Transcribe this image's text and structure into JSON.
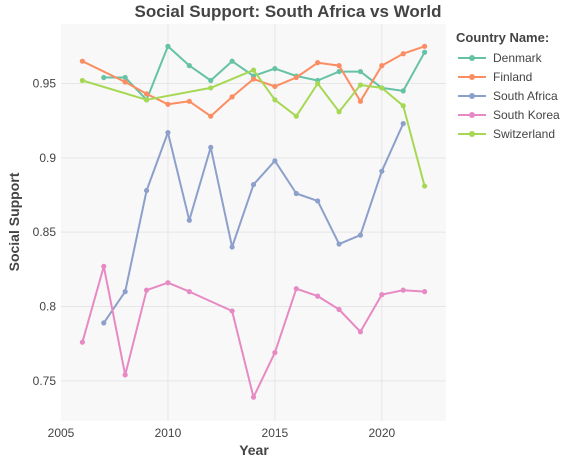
{
  "chart_data": {
    "type": "line",
    "title": "Social Support: South Africa vs World",
    "xlabel": "Year",
    "ylabel": "Social Support",
    "xlim": [
      2005,
      2023
    ],
    "ylim": [
      0.723,
      0.99
    ],
    "xticks": [
      2005,
      2010,
      2015,
      2020
    ],
    "yticks": [
      0.75,
      0.8,
      0.85,
      0.9,
      0.95
    ],
    "ytick_labels": [
      "0.75",
      "0.8",
      "0.85",
      "0.9",
      "0.95"
    ],
    "grid": true,
    "legend": {
      "title": "Country Name:",
      "position": "top-right"
    },
    "series": [
      {
        "name": "Denmark",
        "color": "#66c2a5",
        "x": [
          2007,
          2008,
          2009,
          2010,
          2011,
          2012,
          2013,
          2014,
          2015,
          2016,
          2017,
          2018,
          2019,
          2020,
          2021,
          2022
        ],
        "y": [
          0.954,
          0.954,
          0.939,
          0.975,
          0.962,
          0.952,
          0.965,
          0.955,
          0.96,
          0.955,
          0.952,
          0.958,
          0.958,
          0.947,
          0.945,
          0.971
        ]
      },
      {
        "name": "Finland",
        "color": "#fc8d62",
        "x": [
          2006,
          2008,
          2009,
          2010,
          2011,
          2012,
          2013,
          2014,
          2015,
          2016,
          2017,
          2018,
          2019,
          2020,
          2021,
          2022
        ],
        "y": [
          0.965,
          0.951,
          0.943,
          0.936,
          0.938,
          0.928,
          0.941,
          0.953,
          0.948,
          0.954,
          0.964,
          0.962,
          0.938,
          0.962,
          0.97,
          0.975
        ]
      },
      {
        "name": "South Africa",
        "color": "#8da0cb",
        "x": [
          2007,
          2008,
          2009,
          2010,
          2011,
          2012,
          2013,
          2014,
          2015,
          2016,
          2017,
          2018,
          2019,
          2020,
          2021
        ],
        "y": [
          0.789,
          0.81,
          0.878,
          0.917,
          0.858,
          0.907,
          0.84,
          0.882,
          0.898,
          0.876,
          0.871,
          0.842,
          0.848,
          0.891,
          0.923
        ]
      },
      {
        "name": "South Korea",
        "color": "#e78ac3",
        "x": [
          2006,
          2007,
          2008,
          2009,
          2010,
          2011,
          2013,
          2014,
          2015,
          2016,
          2017,
          2018,
          2019,
          2020,
          2021,
          2022
        ],
        "y": [
          0.776,
          0.827,
          0.754,
          0.811,
          0.816,
          0.81,
          0.797,
          0.739,
          0.769,
          0.812,
          0.807,
          0.798,
          0.783,
          0.808,
          0.811,
          0.81
        ]
      },
      {
        "name": "Switzerland",
        "color": "#a6d854",
        "x": [
          2006,
          2009,
          2012,
          2014,
          2015,
          2016,
          2017,
          2018,
          2019,
          2020,
          2021,
          2022
        ],
        "y": [
          0.952,
          0.939,
          0.947,
          0.959,
          0.939,
          0.928,
          0.95,
          0.931,
          0.949,
          0.947,
          0.935,
          0.881
        ]
      }
    ]
  }
}
